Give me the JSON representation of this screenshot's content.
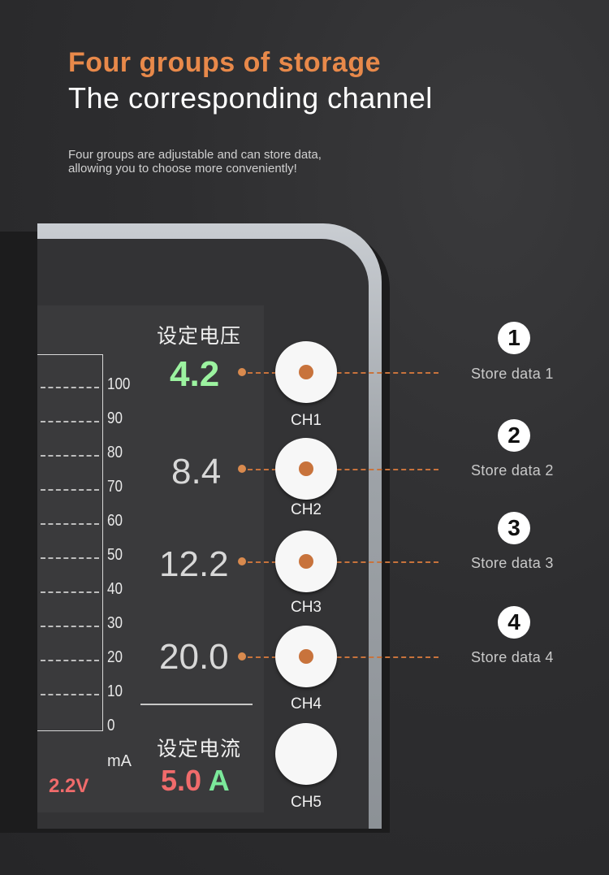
{
  "header": {
    "title_orange": "Four groups of storage",
    "title_white": "The corresponding channel",
    "description_line1": "Four groups are adjustable and can store data,",
    "description_line2": "allowing you to choose more conveniently!"
  },
  "screen": {
    "scale_ticks": [
      "100",
      "90",
      "80",
      "70",
      "60",
      "50",
      "40",
      "30",
      "20",
      "10",
      "0"
    ],
    "scale_unit": "mA",
    "partial_voltage": "2.2V",
    "set_voltage_label": "设定电压",
    "set_current_label": "设定电流",
    "current_value": "5.0",
    "current_unit": "A",
    "colors": {
      "active_value": "#9cf3a0",
      "current": "#f06b6b",
      "accent": "#e8894a"
    }
  },
  "channels": [
    {
      "value": "4.2",
      "label": "CH1",
      "number": "1",
      "store": "Store data 1",
      "active": true
    },
    {
      "value": "8.4",
      "label": "CH2",
      "number": "2",
      "store": "Store data 2",
      "active": false
    },
    {
      "value": "12.2",
      "label": "CH3",
      "number": "3",
      "store": "Store data 3",
      "active": false
    },
    {
      "value": "20.0",
      "label": "CH4",
      "number": "4",
      "store": "Store data 4",
      "active": false
    },
    {
      "label": "CH5"
    }
  ]
}
